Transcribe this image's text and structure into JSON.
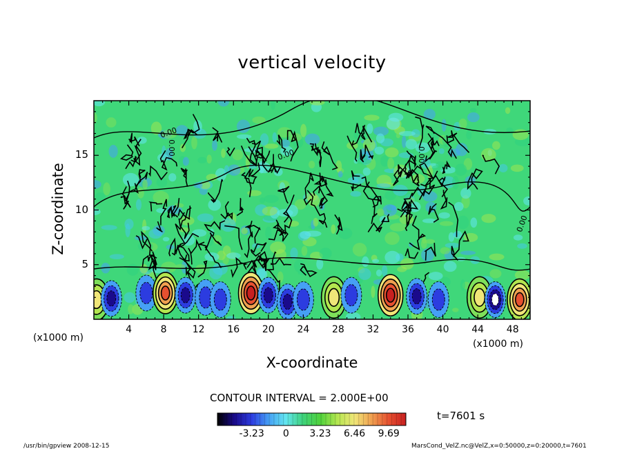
{
  "chart_data": {
    "type": "heatmap",
    "title": "vertical velocity",
    "xlabel": "X-coordinate",
    "ylabel": "Z-coordinate",
    "x_unit": "(x1000 m)",
    "xlim": [
      0,
      50
    ],
    "ylim": [
      0,
      20
    ],
    "x_ticks": [
      "4",
      "8",
      "12",
      "16",
      "20",
      "24",
      "28",
      "32",
      "36",
      "40",
      "44",
      "48"
    ],
    "y_ticks": [
      "5",
      "10",
      "15"
    ],
    "contour_interval": "CONTOUR INTERVAL = 2.000E+00",
    "contour_labels": [
      "0.00",
      "0.00",
      "0.00",
      "0.00",
      "0.00"
    ],
    "colorbar": {
      "ticks": [
        "-3.23",
        "0",
        "3.23",
        "6.46",
        "9.69"
      ],
      "range": [
        -6.46,
        11.3
      ],
      "colors": [
        "#000000",
        "#1a0a8c",
        "#2c3ce0",
        "#46a0f5",
        "#62e6f0",
        "#3ed27a",
        "#50d23c",
        "#b4e650",
        "#f0e678",
        "#f0a050",
        "#e65030",
        "#c82020"
      ]
    },
    "features": [
      {
        "x": 0.3,
        "z": 1.8,
        "w": 4.5
      },
      {
        "x": 2.0,
        "z": 1.9,
        "w": -3.5
      },
      {
        "x": 6.0,
        "z": 2.4,
        "w": -2.5
      },
      {
        "x": 8.2,
        "z": 2.4,
        "w": 5.5
      },
      {
        "x": 10.5,
        "z": 2.2,
        "w": -3.0
      },
      {
        "x": 12.8,
        "z": 2.0,
        "w": -2.5
      },
      {
        "x": 14.5,
        "z": 1.8,
        "w": -2.0
      },
      {
        "x": 18.0,
        "z": 2.4,
        "w": 9.5
      },
      {
        "x": 20.0,
        "z": 2.2,
        "w": -3.5
      },
      {
        "x": 22.2,
        "z": 1.6,
        "w": -3.8
      },
      {
        "x": 24.0,
        "z": 1.8,
        "w": -2.5
      },
      {
        "x": 27.5,
        "z": 2.0,
        "w": 2.5
      },
      {
        "x": 29.5,
        "z": 2.2,
        "w": -2.0
      },
      {
        "x": 34.0,
        "z": 2.2,
        "w": 9.0
      },
      {
        "x": 37.0,
        "z": 2.1,
        "w": -3.5
      },
      {
        "x": 39.5,
        "z": 1.8,
        "w": -2.5
      },
      {
        "x": 44.2,
        "z": 2.0,
        "w": 2.0
      },
      {
        "x": 46.0,
        "z": 1.8,
        "w": -6.0
      },
      {
        "x": 48.8,
        "z": 1.8,
        "w": 7.0
      }
    ]
  },
  "x_unit_right": "(x1000 m)",
  "time_label": "t=7601 s",
  "footer": {
    "left": "/usr/bin/gpview   2008-12-15",
    "right": "MarsCond_VelZ.nc@VelZ,x=0:50000,z=0:20000,t=7601"
  }
}
